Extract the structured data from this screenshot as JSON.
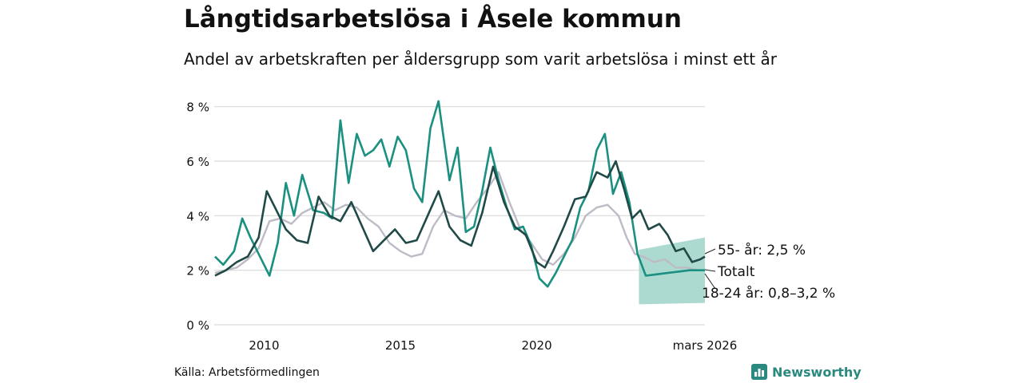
{
  "title": "Långtidsarbetslösa i Åsele kommun",
  "subtitle": "Andel av arbetskraften per åldersgrupp som varit arbetslösa i minst ett år",
  "source": "Källa: Arbetsförmedlingen",
  "brand": {
    "name": "Newsworthy",
    "icon": "chart-logo-icon"
  },
  "colors": {
    "total": "#bdbcc6",
    "age55": "#1f4a47",
    "age1824": "#1a9080",
    "band": "#a8d8cf",
    "grid": "#d9d9d9"
  },
  "chart_data": {
    "type": "line",
    "x_unit": "year",
    "xlim": [
      2008.17,
      2026.17
    ],
    "ylim": [
      0,
      8.4
    ],
    "yticks": [
      {
        "value": 0,
        "label": "0 %"
      },
      {
        "value": 2,
        "label": "2 %"
      },
      {
        "value": 4,
        "label": "4 %"
      },
      {
        "value": 6,
        "label": "6 %"
      },
      {
        "value": 8,
        "label": "8 %"
      }
    ],
    "xticks": [
      {
        "value": 2010,
        "label": "2010"
      },
      {
        "value": 2015,
        "label": "2015"
      },
      {
        "value": 2020,
        "label": "2020"
      },
      {
        "value": 2026.17,
        "label": "mars 2026"
      }
    ],
    "series": [
      {
        "name": "Totalt",
        "color_key": "total",
        "x": [
          2008.2,
          2008.6,
          2009.0,
          2009.4,
          2009.8,
          2010.2,
          2010.6,
          2011.0,
          2011.4,
          2011.8,
          2012.2,
          2012.6,
          2013.0,
          2013.4,
          2013.8,
          2014.2,
          2014.6,
          2015.0,
          2015.4,
          2015.8,
          2016.2,
          2016.6,
          2017.0,
          2017.4,
          2017.8,
          2018.2,
          2018.6,
          2019.0,
          2019.4,
          2019.8,
          2020.2,
          2020.6,
          2021.0,
          2021.4,
          2021.8,
          2022.2,
          2022.6,
          2023.0,
          2023.3,
          2023.6,
          2023.9,
          2024.3,
          2024.7,
          2025.1,
          2025.5,
          2025.9,
          2026.17
        ],
        "values": [
          1.9,
          2.0,
          2.1,
          2.4,
          2.8,
          3.8,
          3.9,
          3.7,
          4.1,
          4.3,
          4.5,
          4.2,
          4.4,
          4.3,
          3.9,
          3.6,
          3.0,
          2.7,
          2.5,
          2.6,
          3.6,
          4.2,
          4.0,
          3.9,
          4.5,
          5.0,
          5.6,
          4.5,
          3.5,
          3.0,
          2.4,
          2.2,
          2.6,
          3.2,
          4.0,
          4.3,
          4.4,
          4.0,
          3.2,
          2.6,
          2.5,
          2.3,
          2.4,
          2.1,
          2.1,
          2.0,
          2.0
        ]
      },
      {
        "name": "55- år",
        "color_key": "age55",
        "x": [
          2008.2,
          2008.6,
          2009.0,
          2009.4,
          2009.8,
          2010.1,
          2010.4,
          2010.8,
          2011.2,
          2011.6,
          2012.0,
          2012.4,
          2012.8,
          2013.2,
          2013.6,
          2014.0,
          2014.4,
          2014.8,
          2015.2,
          2015.6,
          2016.0,
          2016.4,
          2016.8,
          2017.2,
          2017.6,
          2018.0,
          2018.4,
          2018.8,
          2019.2,
          2019.6,
          2020.0,
          2020.3,
          2020.6,
          2021.0,
          2021.4,
          2021.8,
          2022.2,
          2022.6,
          2022.9,
          2023.2,
          2023.5,
          2023.8,
          2024.1,
          2024.5,
          2024.8,
          2025.1,
          2025.4,
          2025.7,
          2026.0,
          2026.17
        ],
        "values": [
          1.8,
          2.0,
          2.3,
          2.5,
          3.2,
          4.9,
          4.3,
          3.5,
          3.1,
          3.0,
          4.7,
          4.0,
          3.8,
          4.5,
          3.6,
          2.7,
          3.1,
          3.5,
          3.0,
          3.1,
          4.0,
          4.9,
          3.6,
          3.1,
          2.9,
          4.1,
          5.8,
          4.5,
          3.6,
          3.3,
          2.3,
          2.1,
          2.7,
          3.6,
          4.6,
          4.7,
          5.6,
          5.4,
          6.0,
          5.0,
          3.9,
          4.2,
          3.5,
          3.7,
          3.3,
          2.7,
          2.8,
          2.3,
          2.4,
          2.5
        ]
      },
      {
        "name": "18-24 år",
        "color_key": "age1824",
        "x": [
          2008.2,
          2008.5,
          2008.9,
          2009.2,
          2009.5,
          2009.8,
          2010.2,
          2010.5,
          2010.8,
          2011.1,
          2011.4,
          2011.8,
          2012.2,
          2012.5,
          2012.8,
          2013.1,
          2013.4,
          2013.7,
          2014.0,
          2014.3,
          2014.6,
          2014.9,
          2015.2,
          2015.5,
          2015.8,
          2016.1,
          2016.4,
          2016.8,
          2017.1,
          2017.4,
          2017.7,
          2018.0,
          2018.3,
          2018.6,
          2018.9,
          2019.2,
          2019.5,
          2019.8,
          2020.1,
          2020.4,
          2020.7,
          2021.0,
          2021.3,
          2021.6,
          2021.9,
          2022.2,
          2022.5,
          2022.8,
          2023.1,
          2023.4,
          2023.7,
          2024.0,
          2024.4,
          2024.8,
          2025.2,
          2025.6,
          2026.17
        ],
        "values": [
          2.5,
          2.2,
          2.7,
          3.9,
          3.2,
          2.6,
          1.8,
          3.0,
          5.2,
          4.0,
          5.5,
          4.2,
          4.1,
          3.9,
          7.5,
          5.2,
          7.0,
          6.2,
          6.4,
          6.8,
          5.8,
          6.9,
          6.4,
          5.0,
          4.5,
          7.2,
          8.2,
          5.3,
          6.5,
          3.4,
          3.6,
          4.9,
          6.5,
          5.3,
          4.3,
          3.5,
          3.6,
          2.9,
          1.7,
          1.4,
          1.9,
          2.5,
          3.1,
          4.3,
          4.9,
          6.4,
          7.0,
          4.8,
          5.6,
          4.5,
          2.6,
          1.8,
          1.85,
          1.9,
          1.95,
          2.0,
          2.0
        ]
      }
    ],
    "confidence_band": {
      "series": "18-24 år",
      "x": [
        2023.75,
        2026.17
      ],
      "lower": [
        0.75,
        0.8
      ],
      "upper": [
        2.75,
        3.2
      ]
    },
    "annotations": [
      {
        "text": "55- år: 2,5 %",
        "series": "55- år"
      },
      {
        "text": "Totalt",
        "series": "Totalt"
      },
      {
        "text": "18-24 år: 0,8–3,2 %",
        "series": "18-24 år"
      }
    ]
  }
}
